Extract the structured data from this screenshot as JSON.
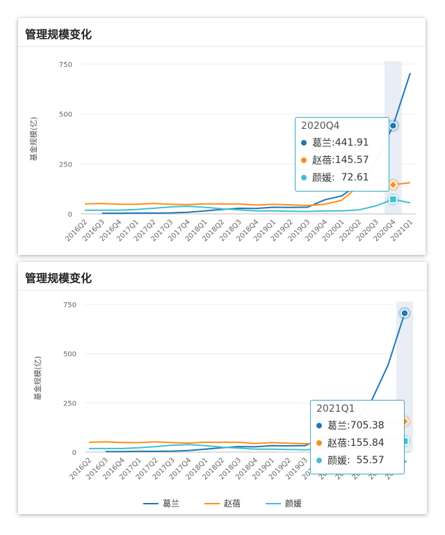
{
  "chart_data": [
    {
      "type": "line",
      "title": "管理规模变化",
      "ylabel": "基金规模(亿)",
      "ylim": [
        0,
        750
      ],
      "yticks": [
        0,
        250,
        500,
        750
      ],
      "categories": [
        "2016Q2",
        "2016Q3",
        "2016Q4",
        "2017Q1",
        "2017Q2",
        "2017Q3",
        "2017Q4",
        "2018Q1",
        "2018Q2",
        "2018Q3",
        "2018Q4",
        "2019Q1",
        "2019Q2",
        "2019Q3",
        "2019Q4",
        "2020Q1",
        "2020Q2",
        "2020Q3",
        "2020Q4",
        "2021Q1"
      ],
      "series": [
        {
          "name": "葛兰",
          "color": "#1f77b4",
          "values": [
            null,
            3,
            3,
            4,
            4,
            5,
            8,
            15,
            22,
            28,
            27,
            33,
            32,
            33,
            70,
            90,
            150,
            260,
            441.91,
            705.38
          ]
        },
        {
          "name": "赵蓓",
          "color": "#ff8c1a",
          "values": [
            50,
            52,
            48,
            48,
            52,
            48,
            46,
            50,
            50,
            50,
            44,
            48,
            45,
            42,
            48,
            68,
            140,
            150,
            145.57,
            155.84
          ]
        },
        {
          "name": "颜媛",
          "color": "#3fc0cf",
          "values": [
            18,
            18,
            18,
            22,
            28,
            35,
            38,
            33,
            25,
            20,
            15,
            15,
            13,
            12,
            15,
            15,
            20,
            40,
            72.61,
            55.57
          ]
        }
      ],
      "highlight_index": 18,
      "tooltip": {
        "header": "2020Q4",
        "rows": [
          {
            "name": "葛兰",
            "value": "441.91"
          },
          {
            "name": "赵蓓",
            "value": "145.57"
          },
          {
            "name": "颜媛",
            "value": "72.61"
          }
        ]
      },
      "legend": "none",
      "grid": true
    },
    {
      "type": "line",
      "title": "管理规模变化",
      "ylabel": "基金规模(亿)",
      "ylim": [
        0,
        750
      ],
      "yticks": [
        0,
        250,
        500,
        750
      ],
      "categories": [
        "2016Q2",
        "2016Q3",
        "2016Q4",
        "2017Q1",
        "2017Q2",
        "2017Q3",
        "2017Q4",
        "2018Q1",
        "2018Q2",
        "2018Q3",
        "2018Q4",
        "2019Q1",
        "2019Q2",
        "2019Q3",
        "2019Q4",
        "2020Q1",
        "2020Q2",
        "2020Q3",
        "2020Q4",
        "2021Q1"
      ],
      "series": [
        {
          "name": "葛兰",
          "color": "#1f77b4",
          "values": [
            null,
            3,
            3,
            4,
            4,
            5,
            8,
            15,
            22,
            28,
            27,
            33,
            32,
            33,
            70,
            90,
            150,
            260,
            441.91,
            705.38
          ]
        },
        {
          "name": "赵蓓",
          "color": "#ff8c1a",
          "values": [
            50,
            52,
            48,
            48,
            52,
            48,
            46,
            50,
            50,
            50,
            44,
            48,
            45,
            42,
            48,
            68,
            140,
            150,
            145.57,
            155.84
          ]
        },
        {
          "name": "颜媛",
          "color": "#3fc0cf",
          "values": [
            18,
            18,
            18,
            22,
            28,
            35,
            38,
            33,
            25,
            20,
            15,
            15,
            13,
            12,
            15,
            15,
            20,
            40,
            72.61,
            55.57
          ]
        }
      ],
      "highlight_index": 19,
      "tooltip": {
        "header": "2021Q1",
        "rows": [
          {
            "name": "葛兰",
            "value": "705.38"
          },
          {
            "name": "赵蓓",
            "value": "155.84"
          },
          {
            "name": "颜媛",
            "value": "55.57"
          }
        ]
      },
      "legend": "bottom-center",
      "grid": true
    }
  ]
}
